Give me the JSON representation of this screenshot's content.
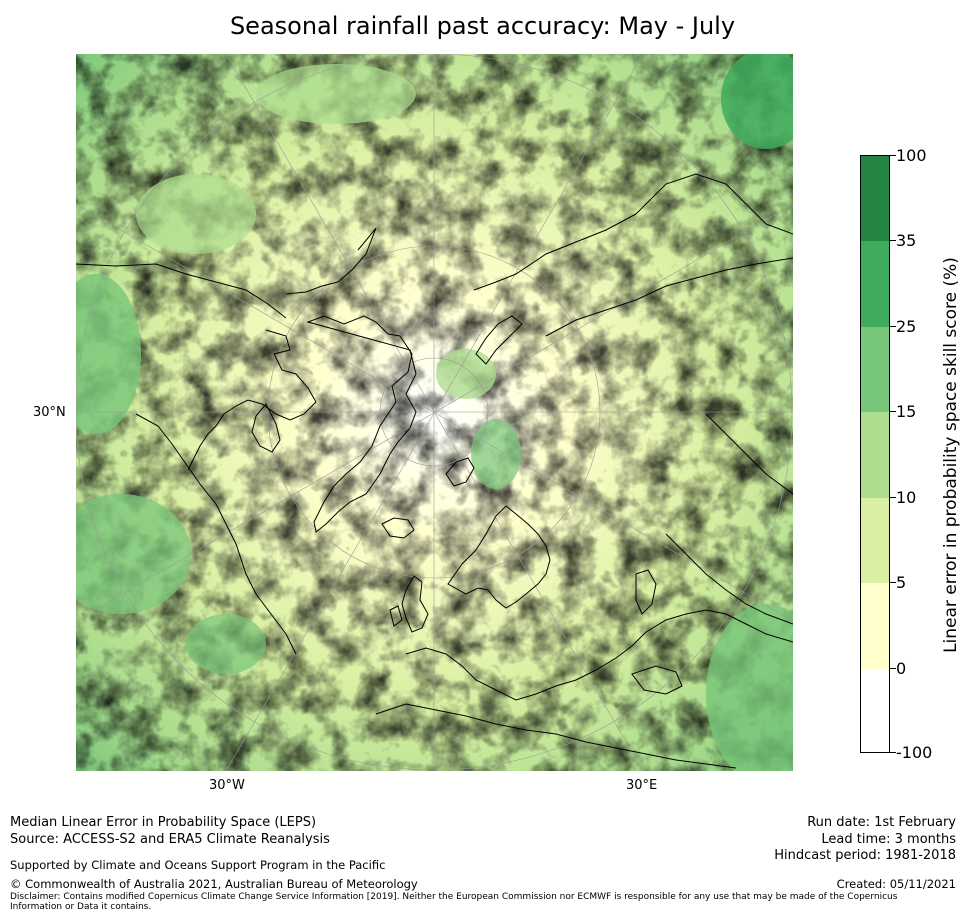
{
  "title": "Seasonal rainfall past accuracy: May - July",
  "map": {
    "projection": "north-polar-stereographic",
    "lat_label": "30°N",
    "lon_labels": [
      "30°W",
      "30°E"
    ],
    "land_outline_color": "#000000",
    "graticule_color": "#9a9a9a"
  },
  "colorbar": {
    "title": "Linear error in probability space skill score (%)",
    "tick_labels": [
      "100",
      "35",
      "25",
      "15",
      "10",
      "5",
      "0",
      "-100"
    ],
    "bins": [
      {
        "range": "35 to 100",
        "color": "#238443"
      },
      {
        "range": "25 to 35",
        "color": "#41ab5d"
      },
      {
        "range": "15 to 25",
        "color": "#78c679"
      },
      {
        "range": "10 to 15",
        "color": "#addd8e"
      },
      {
        "range": "5 to 10",
        "color": "#d9f0a3"
      },
      {
        "range": "0 to 5",
        "color": "#ffffcc"
      },
      {
        "range": "-100 to 0",
        "color": "#ffffff"
      }
    ]
  },
  "footer": {
    "method": "Median Linear Error in Probability Space (LEPS)",
    "source": "Source: ACCESS-S2 and ERA5 Climate Reanalysis",
    "support": "Supported by Climate and Oceans Support Program in the Pacific",
    "copyright": "© Commonwealth of Australia 2021, Australian Bureau of Meteorology",
    "disclaimer": "Disclaimer: Contains modified Copernicus Climate Change Service Information [2019]. Neither the European Commission nor ECMWF is responsible for any use that may be made of the Copernicus Information or Data it contains.",
    "run_date": "Run date: 1st February",
    "lead_time": "Lead time: 3 months",
    "hindcast": "Hindcast period: 1981-2018",
    "created": "Created: 05/11/2021"
  }
}
